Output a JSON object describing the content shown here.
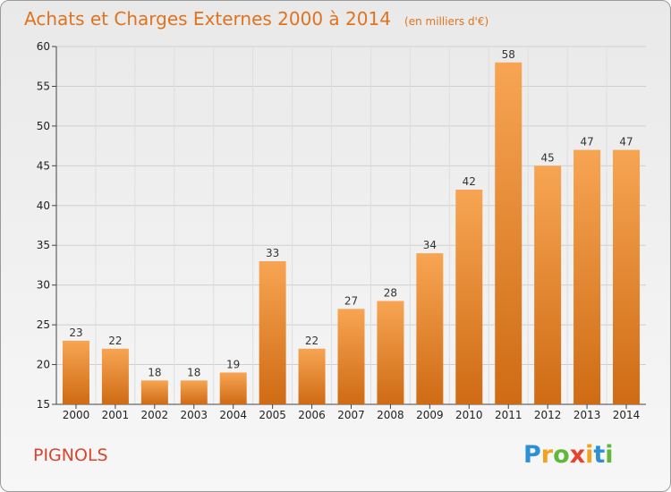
{
  "chart_data": {
    "type": "bar",
    "title": "Achats et Charges Externes 2000 à 2014",
    "subtitle": "(en milliers d'€)",
    "categories": [
      "2000",
      "2001",
      "2002",
      "2003",
      "2004",
      "2005",
      "2006",
      "2007",
      "2008",
      "2009",
      "2010",
      "2011",
      "2012",
      "2013",
      "2014"
    ],
    "values": [
      23,
      22,
      18,
      18,
      19,
      33,
      22,
      27,
      28,
      34,
      42,
      58,
      45,
      47,
      47
    ],
    "ylim": [
      15,
      60
    ],
    "yticks": [
      15,
      20,
      25,
      30,
      35,
      40,
      45,
      50,
      55,
      60
    ],
    "grid": true,
    "bar_color_top": "#f7a553",
    "bar_color_bottom": "#cf6b14"
  },
  "commune": "PIGNOLS",
  "brand": {
    "letters": [
      "P",
      "r",
      "o",
      "x",
      "i",
      "t",
      "i"
    ],
    "colors": [
      "#2f8fd4",
      "#f2a21b",
      "#5fb83a",
      "#e8412c",
      "#f2a21b",
      "#2f8fd4",
      "#5fb83a"
    ]
  }
}
